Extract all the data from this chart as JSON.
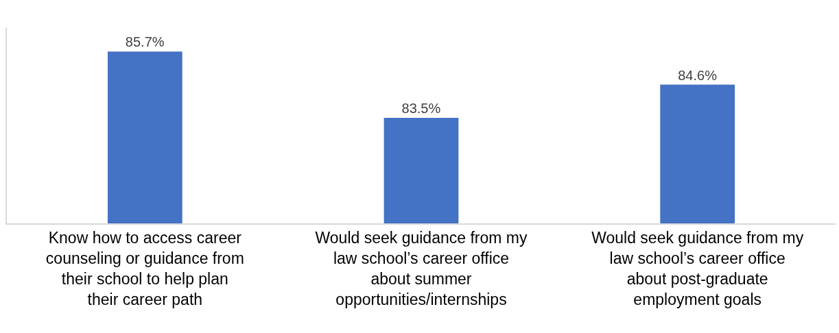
{
  "chart_data": {
    "type": "bar",
    "categories": [
      "Know how to access career counseling or guidance from their school to help plan their career path",
      "Would seek guidance from my law school’s career office about summer opportunities/internships",
      "Would seek guidance from my law school’s career office about post-graduate employment goals"
    ],
    "values": [
      85.7,
      83.5,
      84.6
    ],
    "color": "#4472c4",
    "ylim": [
      80,
      86.5
    ],
    "value_labels": [
      "85.7%",
      "83.5%",
      "84.6%"
    ],
    "tick_labels": "x"
  }
}
